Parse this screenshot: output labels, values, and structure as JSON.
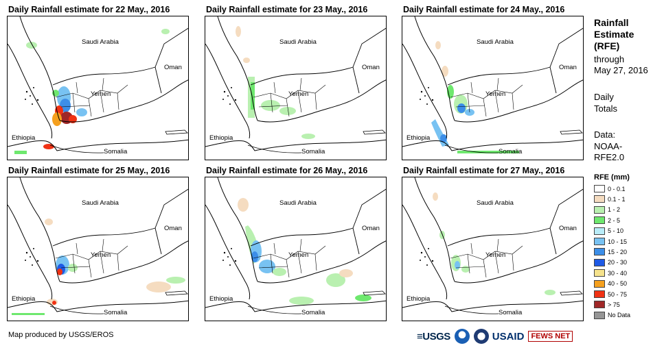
{
  "panels": [
    {
      "title": "Daily Rainfall estimate for 22 May., 2016",
      "date": "22 May 2016"
    },
    {
      "title": "Daily Rainfall estimate for 23 May., 2016",
      "date": "23 May 2016"
    },
    {
      "title": "Daily Rainfall estimate for 24 May., 2016",
      "date": "24 May 2016"
    },
    {
      "title": "Daily Rainfall estimate for 25 May., 2016",
      "date": "25 May 2016"
    },
    {
      "title": "Daily Rainfall estimate for 26 May., 2016",
      "date": "26 May 2016"
    },
    {
      "title": "Daily Rainfall estimate for 27 May., 2016",
      "date": "27 May 2016"
    }
  ],
  "map_labels": {
    "saudi_arabia": "Saudi Arabia",
    "oman": "Oman",
    "yemen": "Yemen",
    "ethiopia": "Ethiopia",
    "somalia": "Somalia"
  },
  "legend": {
    "title_lines": [
      "Rainfall",
      "Estimate",
      "(RFE)"
    ],
    "through_label": "through",
    "through_date": "May 27, 2016",
    "daily_label_1": "Daily",
    "daily_label_2": "Totals",
    "data_label": "Data:",
    "data_src_1": "NOAA-",
    "data_src_2": "RFE2.0",
    "rfe_header": "RFE (mm)",
    "classes": [
      {
        "label": "0 - 0.1",
        "color": "#ffffff"
      },
      {
        "label": "0.1 - 1",
        "color": "#f5dcc0"
      },
      {
        "label": "1 - 2",
        "color": "#b9f0b0"
      },
      {
        "label": "2 - 5",
        "color": "#6ee86e"
      },
      {
        "label": "5 - 10",
        "color": "#b9ecf8"
      },
      {
        "label": "10 - 15",
        "color": "#78c2f2"
      },
      {
        "label": "15 - 20",
        "color": "#3c8ee8"
      },
      {
        "label": "20 - 30",
        "color": "#1e5ae6"
      },
      {
        "label": "30 - 40",
        "color": "#f5e28c"
      },
      {
        "label": "40 - 50",
        "color": "#f5a01e"
      },
      {
        "label": "50 - 75",
        "color": "#f03214"
      },
      {
        "label": "> 75",
        "color": "#a02828"
      },
      {
        "label": "No Data",
        "color": "#969696"
      }
    ]
  },
  "footer": {
    "credit": "Map produced by USGS/EROS",
    "logo_usgs": "≡USGS",
    "logo_usaid": "USAID",
    "logo_fews": "FEWS NET"
  }
}
